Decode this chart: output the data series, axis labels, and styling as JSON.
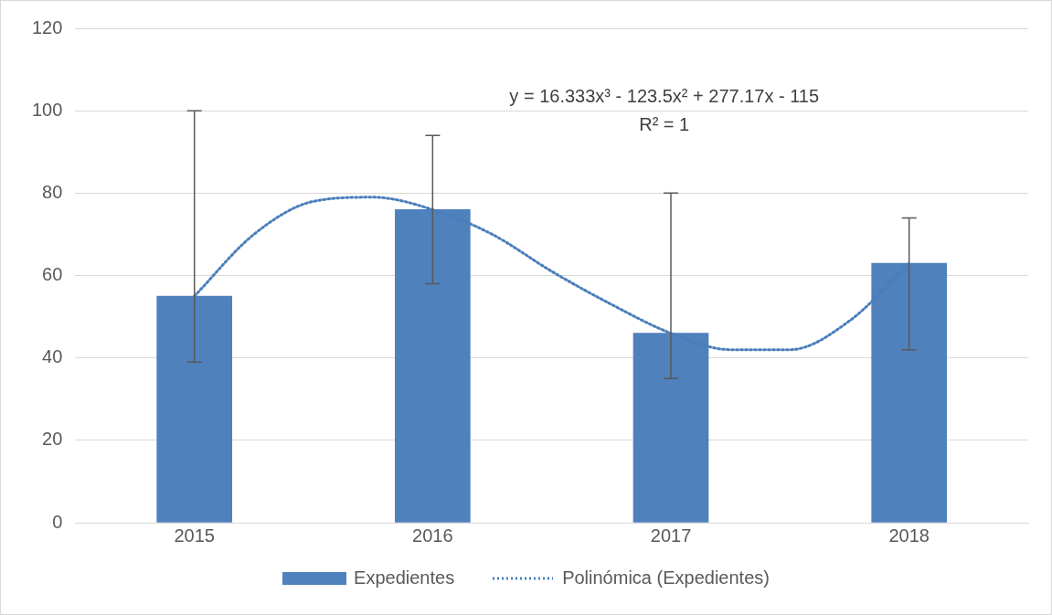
{
  "chart_data": {
    "type": "bar",
    "x": [
      2015,
      2016,
      2017,
      2018
    ],
    "xlim": [
      2014.5,
      2018.5
    ],
    "xticks": [
      2015,
      2016,
      2017,
      2018
    ],
    "ylim": [
      0,
      120
    ],
    "yticks": [
      0,
      20,
      40,
      60,
      80,
      100,
      120
    ],
    "grid": "y",
    "legend": "bottom",
    "series": [
      {
        "name": "Expedientes",
        "color": "#4f81bd",
        "values": [
          55,
          76,
          46,
          63
        ],
        "errors": [
          [
            39,
            100
          ],
          [
            58,
            94
          ],
          [
            35,
            80
          ],
          [
            42,
            74
          ]
        ]
      },
      {
        "name": "Polinómica  (Expedientes)",
        "type": "line",
        "color": "#4a7ebb",
        "line_style": "dotted",
        "marker": "none",
        "x": [
          2015,
          2015.25,
          2015.5,
          2015.75,
          2016,
          2016.25,
          2016.5,
          2016.75,
          2017,
          2017.25,
          2017.5,
          2017.75,
          2018
        ],
        "values": [
          55,
          70,
          78,
          79,
          76,
          70,
          61,
          53,
          46,
          42,
          42,
          49,
          63
        ]
      }
    ],
    "annotations": [
      "y = 16.333x³ - 123.5x² + 277.17x - 115",
      "R² = 1"
    ]
  }
}
